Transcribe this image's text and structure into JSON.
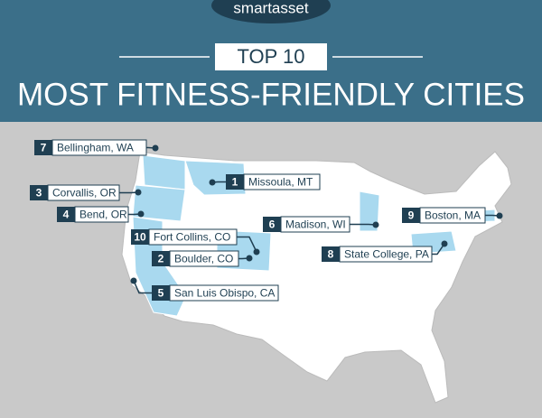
{
  "header": {
    "brand": "smartasset",
    "badge": "TOP 10",
    "title": "MOST FITNESS-FRIENDLY CITIES"
  },
  "labels": [
    {
      "rank": 7,
      "city": "Bellingham, WA"
    },
    {
      "rank": 1,
      "city": "Missoula, MT"
    },
    {
      "rank": 3,
      "city": "Corvallis, OR"
    },
    {
      "rank": 4,
      "city": "Bend, OR"
    },
    {
      "rank": 6,
      "city": "Madison, WI"
    },
    {
      "rank": 9,
      "city": "Boston, MA"
    },
    {
      "rank": 10,
      "city": "Fort Collins, CO"
    },
    {
      "rank": 2,
      "city": "Boulder, CO"
    },
    {
      "rank": 8,
      "city": "State College, PA"
    },
    {
      "rank": 5,
      "city": "San Luis Obispo, CA"
    }
  ]
}
